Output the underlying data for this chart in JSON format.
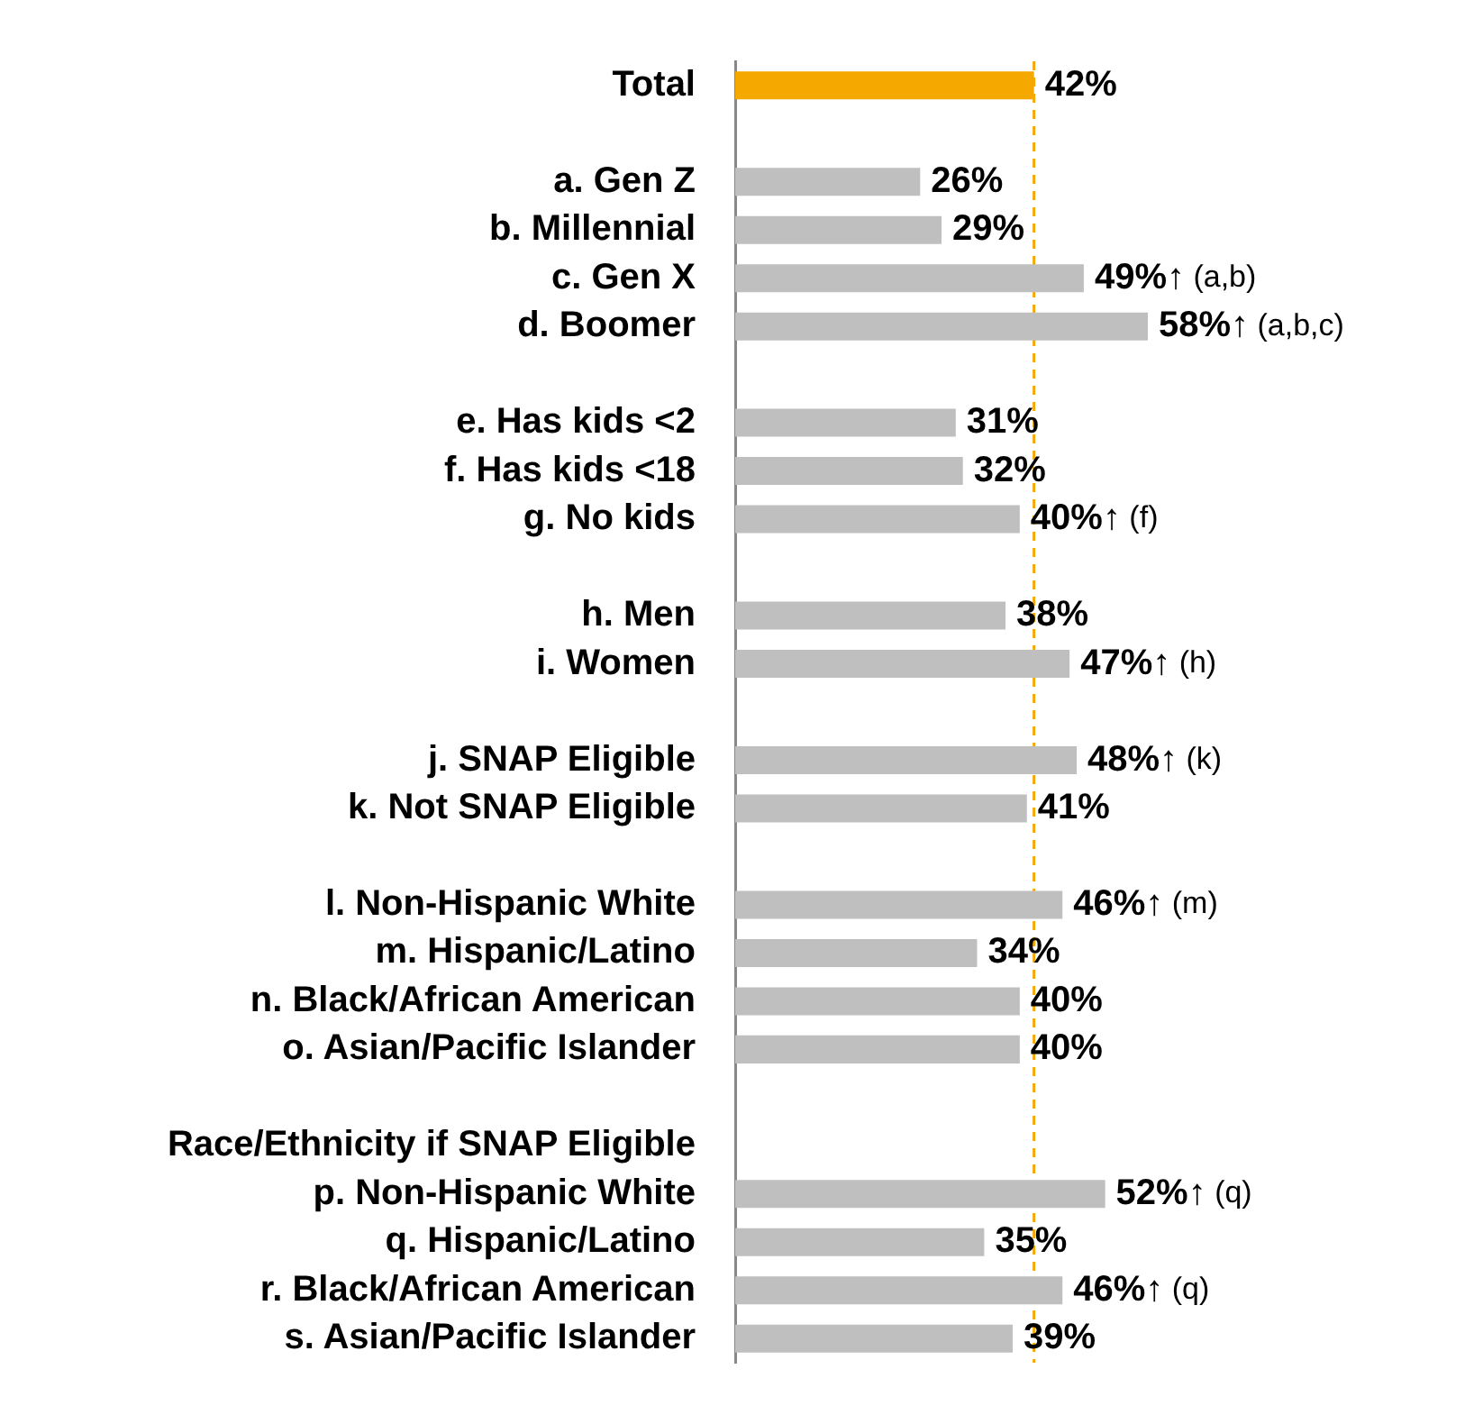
{
  "chart_data": {
    "type": "bar",
    "orientation": "horizontal",
    "categories": [
      "Total",
      null,
      "a. Gen Z",
      "b. Millennial",
      "c. Gen X",
      "d. Boomer",
      null,
      "e. Has kids <2",
      "f. Has kids <18",
      "g. No kids",
      null,
      "h. Men",
      "i. Women",
      null,
      "j. SNAP Eligible",
      "k. Not SNAP Eligible",
      null,
      "l. Non-Hispanic White",
      "m. Hispanic/Latino",
      "n. Black/African American",
      "o. Asian/Pacific Islander",
      null,
      "Race/Ethnicity if SNAP Eligible",
      "p. Non-Hispanic White",
      "q. Hispanic/Latino",
      "r. Black/African American",
      "s. Asian/Pacific Islander"
    ],
    "values": [
      42,
      null,
      26,
      29,
      49,
      58,
      null,
      31,
      32,
      40,
      null,
      38,
      47,
      null,
      48,
      41,
      null,
      46,
      34,
      40,
      40,
      null,
      null,
      52,
      35,
      46,
      39
    ],
    "colors": [
      "#f5a800",
      null,
      "#bfbfbf",
      "#bfbfbf",
      "#bfbfbf",
      "#bfbfbf",
      null,
      "#bfbfbf",
      "#bfbfbf",
      "#bfbfbf",
      null,
      "#bfbfbf",
      "#bfbfbf",
      null,
      "#bfbfbf",
      "#bfbfbf",
      null,
      "#bfbfbf",
      "#bfbfbf",
      "#bfbfbf",
      "#bfbfbf",
      null,
      null,
      "#bfbfbf",
      "#bfbfbf",
      "#bfbfbf",
      "#bfbfbf"
    ],
    "value_labels": [
      "42%",
      null,
      "26%",
      "29%",
      "49%↑ (a,b)",
      "58%↑ (a,b,c)",
      null,
      "31%",
      "32%",
      "40%↑ (f)",
      null,
      "38%",
      "47%↑ (h)",
      null,
      "48%↑ (k)",
      "41%",
      null,
      "46%↑ (m)",
      "34%",
      "40%",
      "40%",
      null,
      null,
      "52%↑ (q)",
      "35%",
      "46%↑ (q)",
      "39%"
    ],
    "tick_labels": "y",
    "grid": false,
    "ref_lines": [
      {
        "axis": "x",
        "value": 42,
        "color": "#f5a800",
        "line_style": "dashed"
      }
    ]
  }
}
